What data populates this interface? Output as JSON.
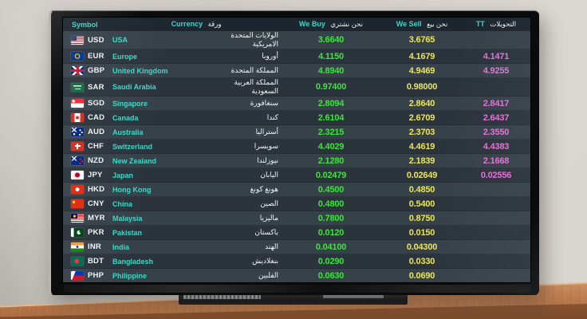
{
  "board": {
    "headers": {
      "symbol_en": "Symbol",
      "currency_en": "Currency",
      "currency_ar": "ورقة",
      "we_buy_en": "We Buy",
      "we_buy_ar": "نحن نشتري",
      "we_sell_en": "We Sell",
      "we_sell_ar": "نحن بيع",
      "tt_en": "TT",
      "tt_ar": "التحويلات"
    },
    "rows": [
      {
        "code": "USD",
        "country": "USA",
        "country_ar": "الولايات المتحدة الامريكية",
        "buy": "3.6640",
        "sell": "3.6765",
        "tt": "",
        "flag": "flag-usd"
      },
      {
        "code": "EUR",
        "country": "Europe",
        "country_ar": "أوروبا",
        "buy": "4.1150",
        "sell": "4.1679",
        "tt": "4.1471",
        "flag": "flag-eur"
      },
      {
        "code": "GBP",
        "country": "United Kingdom",
        "country_ar": "المملكة المتحدة",
        "buy": "4.8940",
        "sell": "4.9469",
        "tt": "4.9255",
        "flag": "flag-gbp"
      },
      {
        "code": "SAR",
        "country": "Saudi Arabia",
        "country_ar": "المملكة العربية السعودية",
        "buy": "0.97400",
        "sell": "0.98000",
        "tt": "",
        "flag": "flag-sar"
      },
      {
        "code": "SGD",
        "country": "Singapore",
        "country_ar": "سنغافورة",
        "buy": "2.8094",
        "sell": "2.8640",
        "tt": "2.8417",
        "flag": "flag-sgd"
      },
      {
        "code": "CAD",
        "country": "Canada",
        "country_ar": "كندا",
        "buy": "2.6104",
        "sell": "2.6709",
        "tt": "2.6437",
        "flag": "flag-cad"
      },
      {
        "code": "AUD",
        "country": "Australia",
        "country_ar": "أستراليا",
        "buy": "2.3215",
        "sell": "2.3703",
        "tt": "2.3550",
        "flag": "flag-aud"
      },
      {
        "code": "CHF",
        "country": "Switzerland",
        "country_ar": "سويسرا",
        "buy": "4.4029",
        "sell": "4.4619",
        "tt": "4.4383",
        "flag": "flag-chf"
      },
      {
        "code": "NZD",
        "country": "New Zealand",
        "country_ar": "نيوزلندا",
        "buy": "2.1280",
        "sell": "2.1839",
        "tt": "2.1668",
        "flag": "flag-nzd"
      },
      {
        "code": "JPY",
        "country": "Japan",
        "country_ar": "اليابان",
        "buy": "0.02479",
        "sell": "0.02649",
        "tt": "0.02556",
        "flag": "flag-jpy"
      },
      {
        "code": "HKD",
        "country": "Hong Kong",
        "country_ar": "هونغ كونغ",
        "buy": "0.4500",
        "sell": "0.4850",
        "tt": "",
        "flag": "flag-hkd"
      },
      {
        "code": "CNY",
        "country": "China",
        "country_ar": "الصين",
        "buy": "0.4800",
        "sell": "0.5400",
        "tt": "",
        "flag": "flag-cny"
      },
      {
        "code": "MYR",
        "country": "Malaysia",
        "country_ar": "ماليزيا",
        "buy": "0.7800",
        "sell": "0.8750",
        "tt": "",
        "flag": "flag-myr"
      },
      {
        "code": "PKR",
        "country": "Pakistan",
        "country_ar": "باكستان",
        "buy": "0.0120",
        "sell": "0.0150",
        "tt": "",
        "flag": "flag-pkr"
      },
      {
        "code": "INR",
        "country": "India",
        "country_ar": "الهند",
        "buy": "0.04100",
        "sell": "0.04300",
        "tt": "",
        "flag": "flag-inr"
      },
      {
        "code": "BDT",
        "country": "Bangladesh",
        "country_ar": "بنغلاديش",
        "buy": "0.0290",
        "sell": "0.0330",
        "tt": "",
        "flag": "flag-bdt"
      },
      {
        "code": "PHP",
        "country": "Philippine",
        "country_ar": "الفلبين",
        "buy": "0.0630",
        "sell": "0.0690",
        "tt": "",
        "flag": "flag-php"
      }
    ],
    "colors": {
      "buy_green": "#3de43c",
      "sell_yellow": "#eae45e",
      "tt_pink": "#e570d8",
      "accent_cyan": "#3cd6c6",
      "header_bg": "#1d262e",
      "row_light": "#37414a",
      "row_dark": "#2b343d"
    }
  }
}
